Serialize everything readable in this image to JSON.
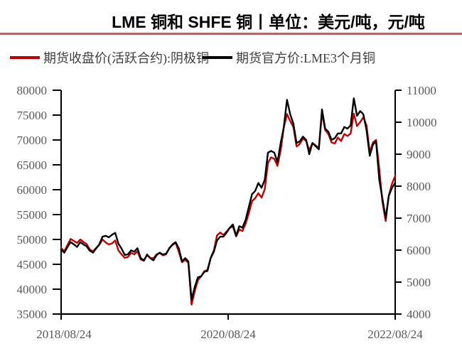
{
  "title": "LME 铜和 SHFE 铜丨单位：美元/吨，元/吨",
  "colors": {
    "shfe_line": "#C00000",
    "lme_line": "#000000",
    "title_rule": "#AE686A",
    "axis": "#000000",
    "tick_text": "#595959",
    "legend_text": "#3f3f3f"
  },
  "chart_data": {
    "type": "line",
    "title": "LME 铜和 SHFE 铜丨单位：美元/吨，元/吨",
    "grid": false,
    "legend_position": "top",
    "x_tick_labels": [
      "2018/08/24",
      "2020/08/24",
      "2022/08/24"
    ],
    "left_axis": {
      "min": 35000,
      "max": 80000,
      "step": 5000,
      "unit": "元/吨"
    },
    "right_axis": {
      "min": 4000,
      "max": 11000,
      "step": 1000,
      "unit": "美元/吨"
    },
    "x": [
      "2018/08/24",
      "2018/09/07",
      "2018/09/21",
      "2018/10/05",
      "2018/10/19",
      "2018/11/02",
      "2018/11/16",
      "2018/11/30",
      "2018/12/14",
      "2018/12/28",
      "2019/01/11",
      "2019/01/25",
      "2019/02/08",
      "2019/02/22",
      "2019/03/08",
      "2019/03/22",
      "2019/04/05",
      "2019/04/19",
      "2019/05/03",
      "2019/05/17",
      "2019/05/31",
      "2019/06/14",
      "2019/06/28",
      "2019/07/12",
      "2019/07/26",
      "2019/08/09",
      "2019/08/23",
      "2019/09/06",
      "2019/09/20",
      "2019/10/04",
      "2019/10/18",
      "2019/11/01",
      "2019/11/15",
      "2019/11/29",
      "2019/12/13",
      "2019/12/27",
      "2020/01/10",
      "2020/01/24",
      "2020/02/07",
      "2020/02/21",
      "2020/03/06",
      "2020/03/20",
      "2020/04/03",
      "2020/04/17",
      "2020/05/01",
      "2020/05/15",
      "2020/05/29",
      "2020/06/12",
      "2020/06/26",
      "2020/07/10",
      "2020/07/24",
      "2020/08/07",
      "2020/08/21",
      "2020/09/04",
      "2020/09/18",
      "2020/10/02",
      "2020/10/16",
      "2020/10/30",
      "2020/11/13",
      "2020/11/27",
      "2020/12/11",
      "2020/12/25",
      "2021/01/08",
      "2021/01/22",
      "2021/02/05",
      "2021/02/19",
      "2021/03/05",
      "2021/03/19",
      "2021/04/02",
      "2021/04/16",
      "2021/04/30",
      "2021/05/14",
      "2021/05/28",
      "2021/06/11",
      "2021/06/25",
      "2021/07/09",
      "2021/07/23",
      "2021/08/06",
      "2021/08/20",
      "2021/09/03",
      "2021/09/17",
      "2021/10/01",
      "2021/10/15",
      "2021/10/29",
      "2021/11/12",
      "2021/11/26",
      "2021/12/10",
      "2021/12/24",
      "2022/01/07",
      "2022/01/21",
      "2022/02/04",
      "2022/02/18",
      "2022/03/04",
      "2022/03/18",
      "2022/04/01",
      "2022/04/15",
      "2022/04/29",
      "2022/05/13",
      "2022/05/27",
      "2022/06/10",
      "2022/06/24",
      "2022/07/08",
      "2022/07/22",
      "2022/08/05",
      "2022/08/19",
      "2022/08/24"
    ],
    "series": [
      {
        "name": "期货收盘价(活跃合约):阴极铜",
        "axis": "left",
        "color": "#C00000",
        "values": [
          48300,
          47600,
          48900,
          50100,
          49700,
          49300,
          50000,
          49500,
          49100,
          48000,
          47600,
          48300,
          48900,
          50000,
          49400,
          49000,
          49200,
          49800,
          47800,
          47000,
          46300,
          46500,
          47300,
          47000,
          47600,
          46000,
          45700,
          47000,
          46300,
          46200,
          47000,
          47300,
          46800,
          47000,
          48300,
          48900,
          49300,
          47500,
          45400,
          45900,
          45300,
          36900,
          39600,
          41800,
          42600,
          43600,
          43900,
          46300,
          47800,
          50800,
          51400,
          50900,
          51600,
          52300,
          52600,
          50600,
          52000,
          51700,
          53200,
          55300,
          57700,
          58300,
          59300,
          58400,
          60100,
          65400,
          66500,
          66200,
          64800,
          67900,
          72500,
          75200,
          73800,
          72600,
          68700,
          69200,
          70300,
          69800,
          67900,
          69400,
          68900,
          68400,
          75500,
          72000,
          71200,
          69500,
          69300,
          70500,
          69800,
          71200,
          70800,
          71300,
          75300,
          72800,
          73600,
          74600,
          72900,
          67500,
          69500,
          70000,
          64200,
          57500,
          53700,
          58800,
          61200,
          62800
        ]
      },
      {
        "name": "期货官方价:LME3个月铜",
        "axis": "right",
        "color": "#000000",
        "values": [
          6020,
          5920,
          6100,
          6250,
          6180,
          6100,
          6250,
          6180,
          6120,
          5980,
          5920,
          6050,
          6180,
          6420,
          6450,
          6400,
          6480,
          6540,
          6200,
          6050,
          5850,
          5870,
          5990,
          5950,
          6060,
          5750,
          5680,
          5850,
          5750,
          5680,
          5840,
          5920,
          5860,
          5890,
          6050,
          6180,
          6250,
          6050,
          5650,
          5750,
          5650,
          4450,
          4850,
          5150,
          5180,
          5320,
          5350,
          5750,
          5950,
          6300,
          6420,
          6420,
          6550,
          6700,
          6800,
          6450,
          6750,
          6700,
          6950,
          7350,
          7750,
          7850,
          8100,
          7950,
          8200,
          9050,
          9100,
          9050,
          8750,
          9350,
          9850,
          10700,
          10250,
          9950,
          9350,
          9400,
          9550,
          9450,
          9000,
          9350,
          9250,
          9150,
          10400,
          9800,
          9700,
          9450,
          9500,
          9650,
          9650,
          9850,
          9800,
          9900,
          10750,
          10200,
          10350,
          10250,
          9750,
          8950,
          9300,
          9400,
          8200,
          7600,
          7000,
          7700,
          7950,
          8100
        ]
      }
    ]
  }
}
